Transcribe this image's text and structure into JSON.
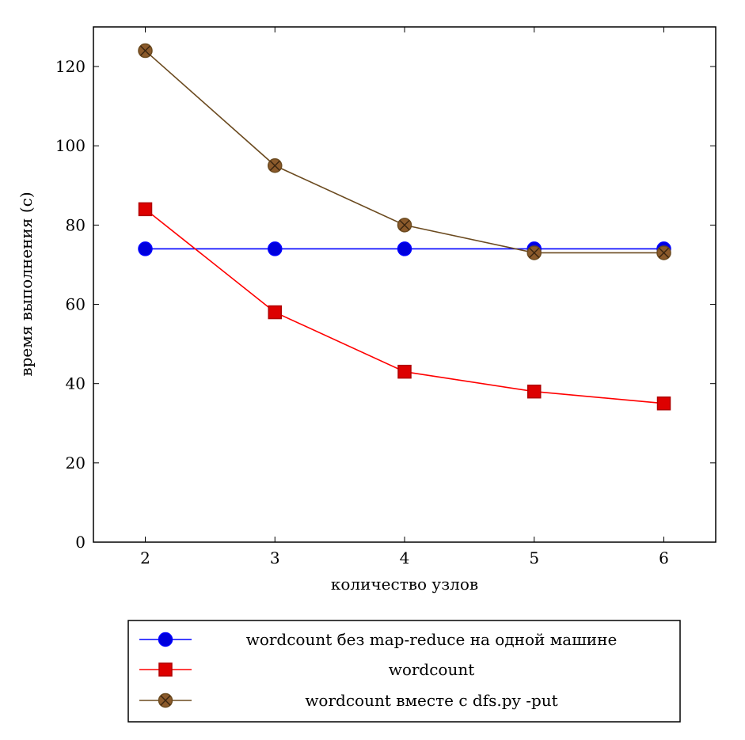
{
  "chart_data": {
    "type": "line",
    "xlabel": "количество узлов",
    "ylabel": "время выполнения (с)",
    "x": [
      2,
      3,
      4,
      5,
      6
    ],
    "xlim": [
      1.6,
      6.4
    ],
    "ylim": [
      0,
      130
    ],
    "xticks": [
      "2",
      "3",
      "4",
      "5",
      "6"
    ],
    "yticks": [
      "0",
      "20",
      "40",
      "60",
      "80",
      "100",
      "120"
    ],
    "grid": false,
    "legend_position": "bottom, below chart",
    "series": [
      {
        "name": "wordcount без map-reduce на одной машине",
        "values": [
          74,
          74,
          74,
          74,
          74
        ],
        "color": "#0000ff",
        "marker": "circle",
        "marker_fill": "#0000dd"
      },
      {
        "name": "wordcount",
        "values": [
          84,
          58,
          43,
          38,
          35
        ],
        "color": "#ff0000",
        "marker": "square",
        "marker_fill": "#dd0000"
      },
      {
        "name": "wordcount вместе с dfs.py -put",
        "values": [
          124,
          95,
          80,
          73,
          73
        ],
        "color": "#6b4a1f",
        "marker": "circle-x",
        "marker_fill": "#8b5a2b"
      }
    ]
  }
}
